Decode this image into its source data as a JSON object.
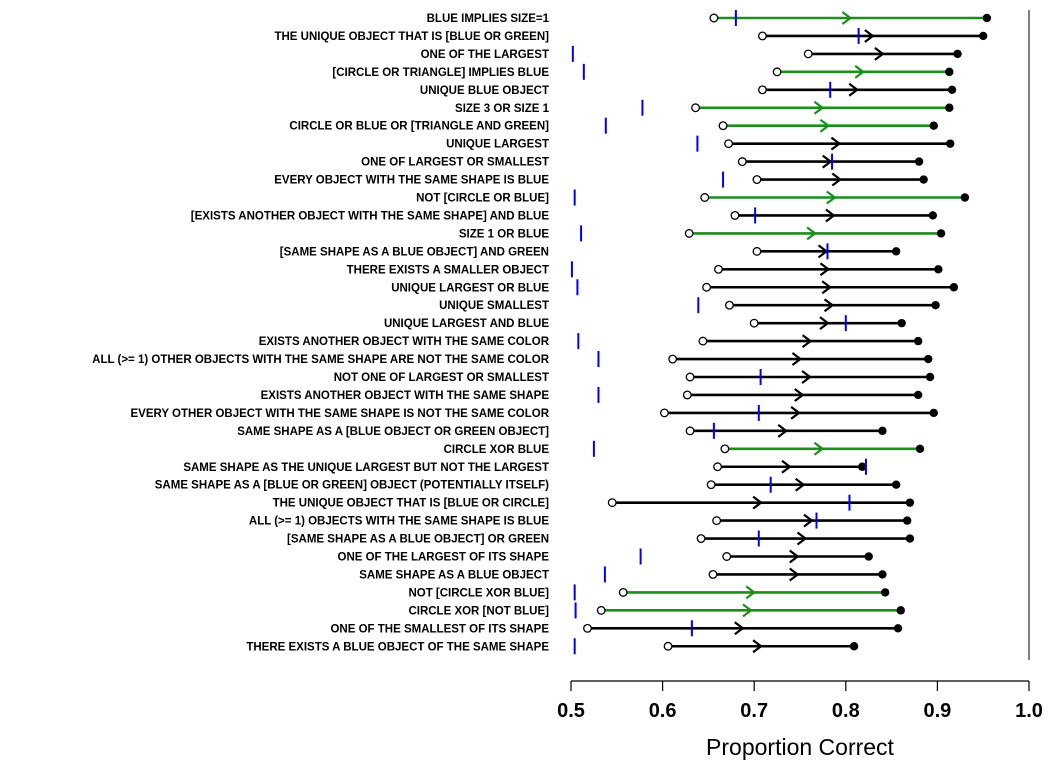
{
  "chart_data": {
    "type": "dumbbell",
    "xlabel": "Proportion Correct",
    "xlim": [
      0.5,
      1.0
    ],
    "xticks": [
      0.5,
      0.6,
      0.7,
      0.8,
      0.9,
      1.0
    ],
    "xtick_labels": [
      "0.5",
      "0.6",
      "0.7",
      "0.8",
      "0.9",
      "1.0"
    ],
    "reference_line_x": 1.0,
    "colors": {
      "black": "#000000",
      "green": "#1a8f1a",
      "blue": "#0000ee"
    },
    "rows": [
      {
        "label": "BLUE IMPLIES SIZE=1",
        "start": 0.656,
        "end": 0.954,
        "color": "green",
        "marker": 0.68
      },
      {
        "label": "THE UNIQUE OBJECT THAT IS [BLUE OR GREEN]",
        "start": 0.709,
        "end": 0.95,
        "color": "black",
        "marker": 0.814
      },
      {
        "label": "ONE OF THE LARGEST",
        "start": 0.759,
        "end": 0.922,
        "color": "black",
        "marker": 0.502
      },
      {
        "label": "[CIRCLE OR TRIANGLE] IMPLIES BLUE",
        "start": 0.725,
        "end": 0.913,
        "color": "green",
        "marker": 0.514
      },
      {
        "label": "UNIQUE BLUE OBJECT",
        "start": 0.709,
        "end": 0.916,
        "color": "black",
        "marker": 0.783
      },
      {
        "label": "SIZE 3 OR SIZE 1",
        "start": 0.636,
        "end": 0.913,
        "color": "green",
        "marker": 0.578
      },
      {
        "label": "CIRCLE OR BLUE OR [TRIANGLE AND GREEN]",
        "start": 0.666,
        "end": 0.896,
        "color": "green",
        "marker": 0.538
      },
      {
        "label": "UNIQUE LARGEST",
        "start": 0.672,
        "end": 0.914,
        "color": "black",
        "marker": 0.638
      },
      {
        "label": "ONE OF LARGEST OR SMALLEST",
        "start": 0.687,
        "end": 0.88,
        "color": "black",
        "marker": 0.785
      },
      {
        "label": "EVERY OBJECT WITH THE SAME SHAPE IS BLUE",
        "start": 0.703,
        "end": 0.885,
        "color": "black",
        "marker": 0.666
      },
      {
        "label": "NOT [CIRCLE OR BLUE]",
        "start": 0.646,
        "end": 0.93,
        "color": "green",
        "marker": 0.504
      },
      {
        "label": "[EXISTS ANOTHER OBJECT WITH THE SAME SHAPE] AND BLUE",
        "start": 0.679,
        "end": 0.895,
        "color": "black",
        "marker": 0.701
      },
      {
        "label": "SIZE 1 OR BLUE",
        "start": 0.629,
        "end": 0.904,
        "color": "green",
        "marker": 0.511
      },
      {
        "label": "[SAME SHAPE AS A BLUE OBJECT] AND GREEN",
        "start": 0.703,
        "end": 0.855,
        "color": "black",
        "marker": 0.78
      },
      {
        "label": "THERE EXISTS A SMALLER OBJECT",
        "start": 0.661,
        "end": 0.901,
        "color": "black",
        "marker": 0.501
      },
      {
        "label": "UNIQUE LARGEST OR BLUE",
        "start": 0.648,
        "end": 0.918,
        "color": "black",
        "marker": 0.507
      },
      {
        "label": "UNIQUE SMALLEST",
        "start": 0.673,
        "end": 0.898,
        "color": "black",
        "marker": 0.639
      },
      {
        "label": "UNIQUE LARGEST AND BLUE",
        "start": 0.7,
        "end": 0.861,
        "color": "black",
        "marker": 0.8
      },
      {
        "label": "EXISTS ANOTHER OBJECT WITH THE SAME COLOR",
        "start": 0.644,
        "end": 0.879,
        "color": "black",
        "marker": 0.508
      },
      {
        "label": "ALL (>= 1) OTHER OBJECTS WITH THE SAME SHAPE ARE NOT THE SAME COLOR",
        "start": 0.611,
        "end": 0.89,
        "color": "black",
        "marker": 0.53
      },
      {
        "label": "NOT ONE OF LARGEST OR SMALLEST",
        "start": 0.63,
        "end": 0.892,
        "color": "black",
        "marker": 0.707
      },
      {
        "label": "EXISTS ANOTHER OBJECT WITH THE SAME SHAPE",
        "start": 0.627,
        "end": 0.879,
        "color": "black",
        "marker": 0.53
      },
      {
        "label": "EVERY OTHER OBJECT WITH THE SAME SHAPE IS NOT THE SAME COLOR",
        "start": 0.602,
        "end": 0.896,
        "color": "black",
        "marker": 0.705
      },
      {
        "label": "SAME SHAPE AS A [BLUE OBJECT OR GREEN OBJECT]",
        "start": 0.63,
        "end": 0.84,
        "color": "black",
        "marker": 0.656
      },
      {
        "label": "CIRCLE XOR BLUE",
        "start": 0.668,
        "end": 0.881,
        "color": "green",
        "marker": 0.525
      },
      {
        "label": "SAME SHAPE AS THE UNIQUE LARGEST BUT NOT THE LARGEST",
        "start": 0.66,
        "end": 0.818,
        "color": "black",
        "marker": 0.822
      },
      {
        "label": "SAME SHAPE AS A [BLUE OR GREEN] OBJECT (POTENTIALLY ITSELF)",
        "start": 0.653,
        "end": 0.855,
        "color": "black",
        "marker": 0.718
      },
      {
        "label": "THE UNIQUE OBJECT THAT IS [BLUE OR CIRCLE]",
        "start": 0.545,
        "end": 0.87,
        "color": "black",
        "marker": 0.804
      },
      {
        "label": "ALL (>= 1) OBJECTS WITH THE SAME SHAPE IS BLUE",
        "start": 0.659,
        "end": 0.867,
        "color": "black",
        "marker": 0.768
      },
      {
        "label": "[SAME SHAPE AS A BLUE OBJECT] OR GREEN",
        "start": 0.642,
        "end": 0.87,
        "color": "black",
        "marker": 0.705
      },
      {
        "label": "ONE OF THE LARGEST OF ITS SHAPE",
        "start": 0.67,
        "end": 0.825,
        "color": "black",
        "marker": 0.576
      },
      {
        "label": "SAME SHAPE AS A BLUE OBJECT",
        "start": 0.655,
        "end": 0.84,
        "color": "black",
        "marker": 0.537
      },
      {
        "label": "NOT [CIRCLE XOR BLUE]",
        "start": 0.557,
        "end": 0.843,
        "color": "green",
        "marker": 0.504
      },
      {
        "label": "CIRCLE XOR [NOT BLUE]",
        "start": 0.533,
        "end": 0.86,
        "color": "green",
        "marker": 0.505
      },
      {
        "label": "ONE OF THE SMALLEST OF ITS SHAPE",
        "start": 0.518,
        "end": 0.857,
        "color": "black",
        "marker": 0.632
      },
      {
        "label": "THERE EXISTS A BLUE OBJECT OF THE SAME SHAPE",
        "start": 0.606,
        "end": 0.809,
        "color": "black",
        "marker": 0.504
      }
    ]
  }
}
